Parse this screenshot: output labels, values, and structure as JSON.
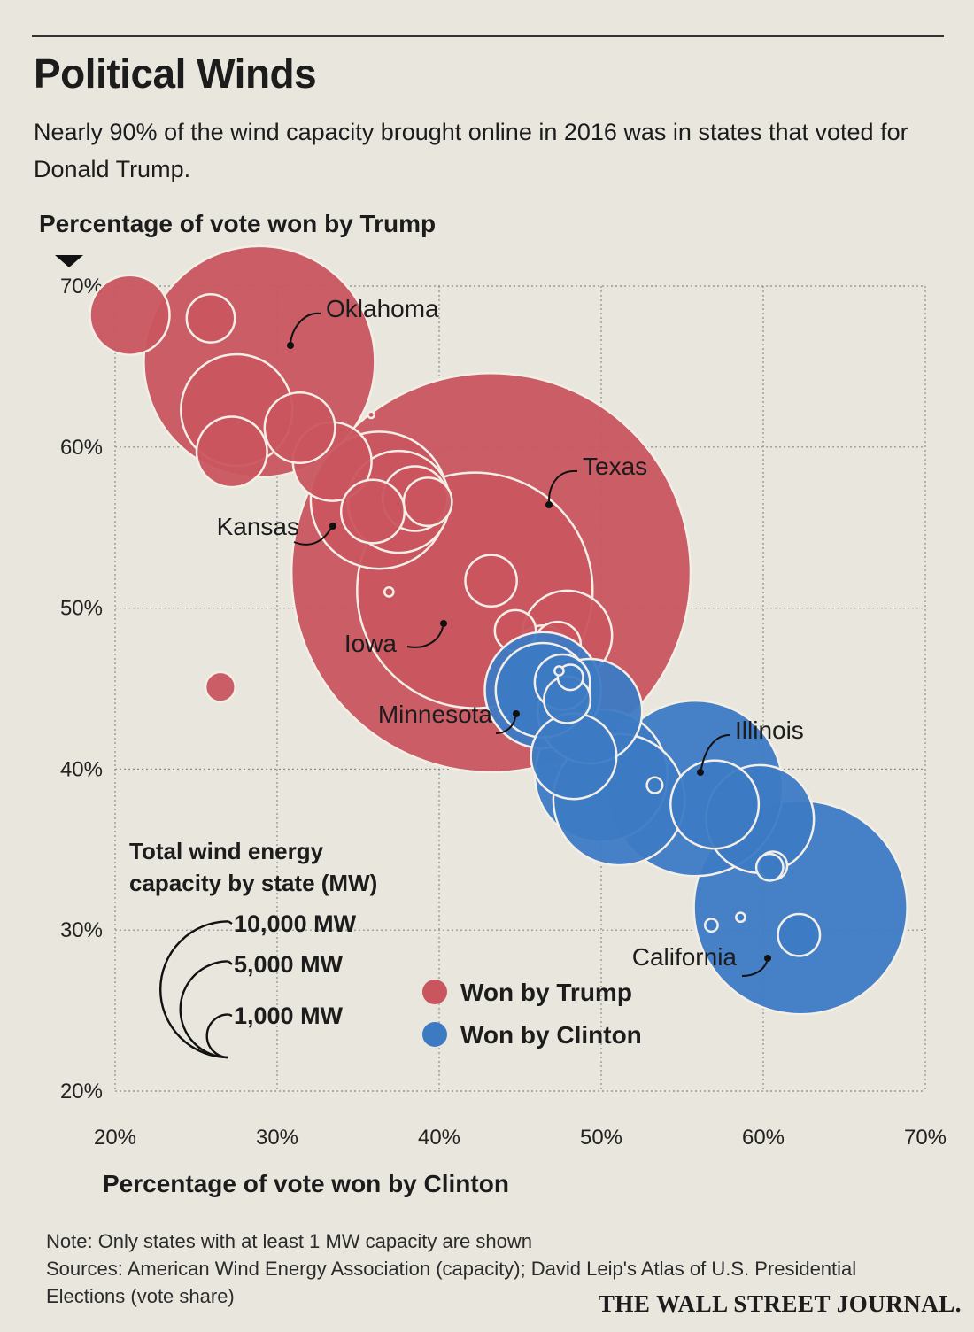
{
  "header": {
    "title": "Political Winds",
    "subtitle": "Nearly 90% of the wind capacity brought online in 2016 was in states that voted for Donald Trump."
  },
  "chart_data": {
    "type": "scatter",
    "title": "Political Winds",
    "subtitle": "Nearly 90% of the wind capacity brought online in 2016 was in states that voted for Donald Trump.",
    "xlabel": "Percentage of vote won by Clinton",
    "ylabel": "Percentage of vote won by Trump",
    "xlim": [
      20,
      70
    ],
    "ylim": [
      20,
      70
    ],
    "x_ticks": [
      "20%",
      "30%",
      "40%",
      "50%",
      "60%",
      "70%"
    ],
    "y_ticks": [
      "20%",
      "30%",
      "40%",
      "50%",
      "60%",
      "70%"
    ],
    "grid": true,
    "point_size": "Total wind energy capacity by state (MW)",
    "series": [
      {
        "name": "Won by Trump",
        "color": "#c9555f",
        "points": [
          {
            "x": 20.9,
            "y": 68.2,
            "mw": 790
          },
          {
            "x": 25.9,
            "y": 68.0,
            "mw": 290
          },
          {
            "x": 28.9,
            "y": 65.3,
            "mw": 6650,
            "label": "Oklahoma"
          },
          {
            "x": 27.5,
            "y": 62.3,
            "mw": 1550
          },
          {
            "x": 31.4,
            "y": 61.2,
            "mw": 620
          },
          {
            "x": 27.2,
            "y": 59.7,
            "mw": 620
          },
          {
            "x": 35.8,
            "y": 62.0,
            "mw": 5
          },
          {
            "x": 33.4,
            "y": 59.1,
            "mw": 770
          },
          {
            "x": 36.3,
            "y": 56.7,
            "mw": 2340
          },
          {
            "x": 37.5,
            "y": 56.6,
            "mw": 1290
          },
          {
            "x": 35.9,
            "y": 56.0,
            "mw": 500,
            "label": "Kansas"
          },
          {
            "x": 38.5,
            "y": 56.8,
            "mw": 520
          },
          {
            "x": 39.3,
            "y": 56.6,
            "mw": 290
          },
          {
            "x": 36.9,
            "y": 51.0,
            "mw": 10
          },
          {
            "x": 43.2,
            "y": 52.2,
            "mw": 19850,
            "label": "Texas"
          },
          {
            "x": 42.2,
            "y": 51.1,
            "mw": 6910,
            "label": "Iowa"
          },
          {
            "x": 43.2,
            "y": 51.7,
            "mw": 330
          },
          {
            "x": 44.7,
            "y": 48.6,
            "mw": 210
          },
          {
            "x": 47.9,
            "y": 48.3,
            "mw": 1000
          },
          {
            "x": 46.4,
            "y": 47.2,
            "mw": 380
          },
          {
            "x": 47.3,
            "y": 47.7,
            "mw": 270
          },
          {
            "x": 26.5,
            "y": 45.1,
            "mw": 110
          }
        ]
      },
      {
        "name": "Won by Clinton",
        "color": "#3d7ac4",
        "points": [
          {
            "x": 46.4,
            "y": 44.9,
            "mw": 1110
          },
          {
            "x": 47.4,
            "y": 46.1,
            "mw": 10
          },
          {
            "x": 47.6,
            "y": 45.4,
            "mw": 380
          },
          {
            "x": 47.9,
            "y": 44.3,
            "mw": 270
          },
          {
            "x": 48.1,
            "y": 45.7,
            "mw": 80
          },
          {
            "x": 46.4,
            "y": 44.9,
            "mw": 1680,
            "label": "Minnesota"
          },
          {
            "x": 49.3,
            "y": 43.6,
            "mw": 1360
          },
          {
            "x": 48.3,
            "y": 40.8,
            "mw": 910
          },
          {
            "x": 50.0,
            "y": 39.6,
            "mw": 2190
          },
          {
            "x": 51.1,
            "y": 38.1,
            "mw": 2150
          },
          {
            "x": 55.8,
            "y": 38.8,
            "mw": 3840,
            "label": "Illinois"
          },
          {
            "x": 53.3,
            "y": 39.0,
            "mw": 30
          },
          {
            "x": 57.0,
            "y": 37.8,
            "mw": 970
          },
          {
            "x": 59.8,
            "y": 36.9,
            "mw": 1450
          },
          {
            "x": 62.3,
            "y": 31.4,
            "mw": 5670,
            "label": "California"
          },
          {
            "x": 60.4,
            "y": 33.9,
            "mw": 90
          },
          {
            "x": 60.6,
            "y": 34.0,
            "mw": 100
          },
          {
            "x": 62.2,
            "y": 29.7,
            "mw": 220
          },
          {
            "x": 58.6,
            "y": 30.8,
            "mw": 10
          },
          {
            "x": 56.8,
            "y": 30.3,
            "mw": 20
          }
        ]
      }
    ],
    "size_legend": {
      "title": "Total wind energy capacity by state (MW)",
      "title_lines": [
        "Total wind energy",
        "capacity by state (MW)"
      ],
      "items": [
        {
          "label": "10,000 MW",
          "mw": 10000
        },
        {
          "label": "5,000 MW",
          "mw": 5000
        },
        {
          "label": "1,000 MW",
          "mw": 1000
        }
      ]
    },
    "legend": [
      {
        "label": "Won by Trump",
        "color": "#c9555f"
      },
      {
        "label": "Won by Clinton",
        "color": "#3d7ac4"
      }
    ]
  },
  "footer": {
    "note": "Note: Only states with at least 1 MW capacity are shown",
    "sources": "Sources: American Wind Energy Association (capacity); David Leip's Atlas of U.S. Presidential",
    "sources_cont": "Elections (vote share)",
    "credit": "THE WALL STREET JOURNAL."
  }
}
